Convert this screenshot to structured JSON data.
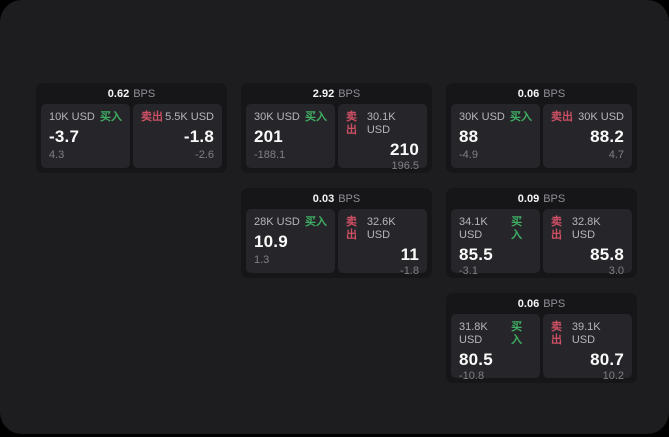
{
  "labels": {
    "bps_unit": "BPS",
    "buy": "买入",
    "sell": "卖出"
  },
  "colors": {
    "background": "#000000",
    "surface": "#1d1d20",
    "card_bg": "#161619",
    "panel_bg": "#26262a",
    "buy_green": "#3fae63",
    "sell_red": "#cc4f64",
    "value_white": "#fafafa",
    "amount_gray": "#b5b5ba",
    "sub_gray": "#7f7f85"
  },
  "cards": [
    {
      "bps": "0.62",
      "buy": {
        "amount": "10K USD",
        "value": "-3.7",
        "sub": "4.3"
      },
      "sell": {
        "amount": "5.5K USD",
        "value": "-1.8",
        "sub": "-2.6"
      }
    },
    {
      "bps": "2.92",
      "buy": {
        "amount": "30K USD",
        "value": "201",
        "sub": "-188.1"
      },
      "sell": {
        "amount": "30.1K USD",
        "value": "210",
        "sub": "196.5"
      }
    },
    {
      "bps": "0.06",
      "buy": {
        "amount": "30K USD",
        "value": "88",
        "sub": "-4.9"
      },
      "sell": {
        "amount": "30K USD",
        "value": "88.2",
        "sub": "4.7"
      }
    },
    {
      "bps": "0.03",
      "buy": {
        "amount": "28K USD",
        "value": "10.9",
        "sub": "1.3"
      },
      "sell": {
        "amount": "32.6K USD",
        "value": "11",
        "sub": "-1.8"
      }
    },
    {
      "bps": "0.09",
      "buy": {
        "amount": "34.1K USD",
        "value": "85.5",
        "sub": "-3.1"
      },
      "sell": {
        "amount": "32.8K USD",
        "value": "85.8",
        "sub": "3.0"
      }
    },
    {
      "bps": "0.06",
      "buy": {
        "amount": "31.8K USD",
        "value": "80.5",
        "sub": "-10.8"
      },
      "sell": {
        "amount": "39.1K USD",
        "value": "80.7",
        "sub": "10.2"
      }
    }
  ]
}
